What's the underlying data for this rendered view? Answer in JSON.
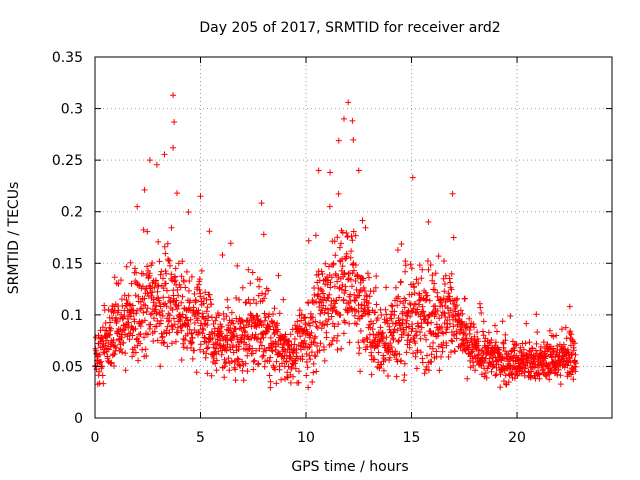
{
  "chart_data": {
    "type": "scatter",
    "title": "Day 205 of 2017, SRMTID for receiver ard2",
    "xlabel": "GPS time / hours",
    "ylabel": "SRMTID / TECUs",
    "xlim": [
      0,
      24.5
    ],
    "ylim": [
      0,
      0.35
    ],
    "x_ticks": [
      0,
      5,
      10,
      15,
      20
    ],
    "x_tick_labels": [
      "0",
      "5",
      "10",
      "15",
      "20"
    ],
    "y_ticks": [
      0,
      0.05,
      0.1,
      0.15,
      0.2,
      0.25,
      0.3,
      0.35
    ],
    "y_tick_labels": [
      "0",
      "0.05",
      "0.1",
      "0.15",
      "0.2",
      "0.25",
      "0.3",
      "0.35"
    ],
    "grid": true,
    "marker": "+",
    "series": [
      {
        "name": "SRMTID",
        "color": "#ff0000",
        "profile": {
          "hours": [
            0,
            0.5,
            1,
            1.5,
            2,
            2.5,
            3,
            3.5,
            4,
            4.5,
            5,
            5.5,
            6,
            6.5,
            7,
            7.5,
            8,
            8.5,
            9,
            9.5,
            10,
            10.5,
            11,
            11.5,
            12,
            12.5,
            13,
            13.5,
            14,
            14.5,
            15,
            15.5,
            16,
            16.5,
            17,
            17.5,
            18,
            18.5,
            19,
            19.5,
            20,
            20.5,
            21,
            21.5,
            22,
            22.5,
            22.8
          ],
          "median": [
            0.055,
            0.07,
            0.085,
            0.09,
            0.1,
            0.11,
            0.11,
            0.12,
            0.11,
            0.09,
            0.1,
            0.08,
            0.075,
            0.07,
            0.075,
            0.085,
            0.08,
            0.07,
            0.065,
            0.065,
            0.08,
            0.1,
            0.11,
            0.12,
            0.13,
            0.11,
            0.09,
            0.075,
            0.08,
            0.09,
            0.1,
            0.095,
            0.095,
            0.1,
            0.1,
            0.075,
            0.065,
            0.06,
            0.058,
            0.055,
            0.055,
            0.052,
            0.055,
            0.055,
            0.055,
            0.06,
            0.06
          ],
          "spread": [
            0.02,
            0.025,
            0.03,
            0.035,
            0.04,
            0.045,
            0.045,
            0.05,
            0.045,
            0.035,
            0.04,
            0.03,
            0.03,
            0.03,
            0.035,
            0.035,
            0.035,
            0.03,
            0.025,
            0.025,
            0.035,
            0.045,
            0.05,
            0.06,
            0.06,
            0.05,
            0.04,
            0.03,
            0.035,
            0.04,
            0.04,
            0.04,
            0.04,
            0.04,
            0.035,
            0.025,
            0.02,
            0.02,
            0.018,
            0.018,
            0.018,
            0.016,
            0.016,
            0.016,
            0.018,
            0.02,
            0.02
          ],
          "sample_count": 2200
        },
        "peaks": [
          {
            "x": 2.6,
            "y": 0.25
          },
          {
            "x": 3.7,
            "y": 0.313
          },
          {
            "x": 3.75,
            "y": 0.287
          },
          {
            "x": 3.7,
            "y": 0.262
          },
          {
            "x": 2.0,
            "y": 0.205
          },
          {
            "x": 5.0,
            "y": 0.215
          },
          {
            "x": 10.6,
            "y": 0.24
          },
          {
            "x": 11.8,
            "y": 0.29
          },
          {
            "x": 12.0,
            "y": 0.306
          },
          {
            "x": 12.2,
            "y": 0.288
          },
          {
            "x": 12.5,
            "y": 0.24
          },
          {
            "x": 8.0,
            "y": 0.178
          },
          {
            "x": 15.8,
            "y": 0.19
          },
          {
            "x": 17.0,
            "y": 0.175
          },
          {
            "x": 22.5,
            "y": 0.108
          }
        ]
      }
    ]
  }
}
